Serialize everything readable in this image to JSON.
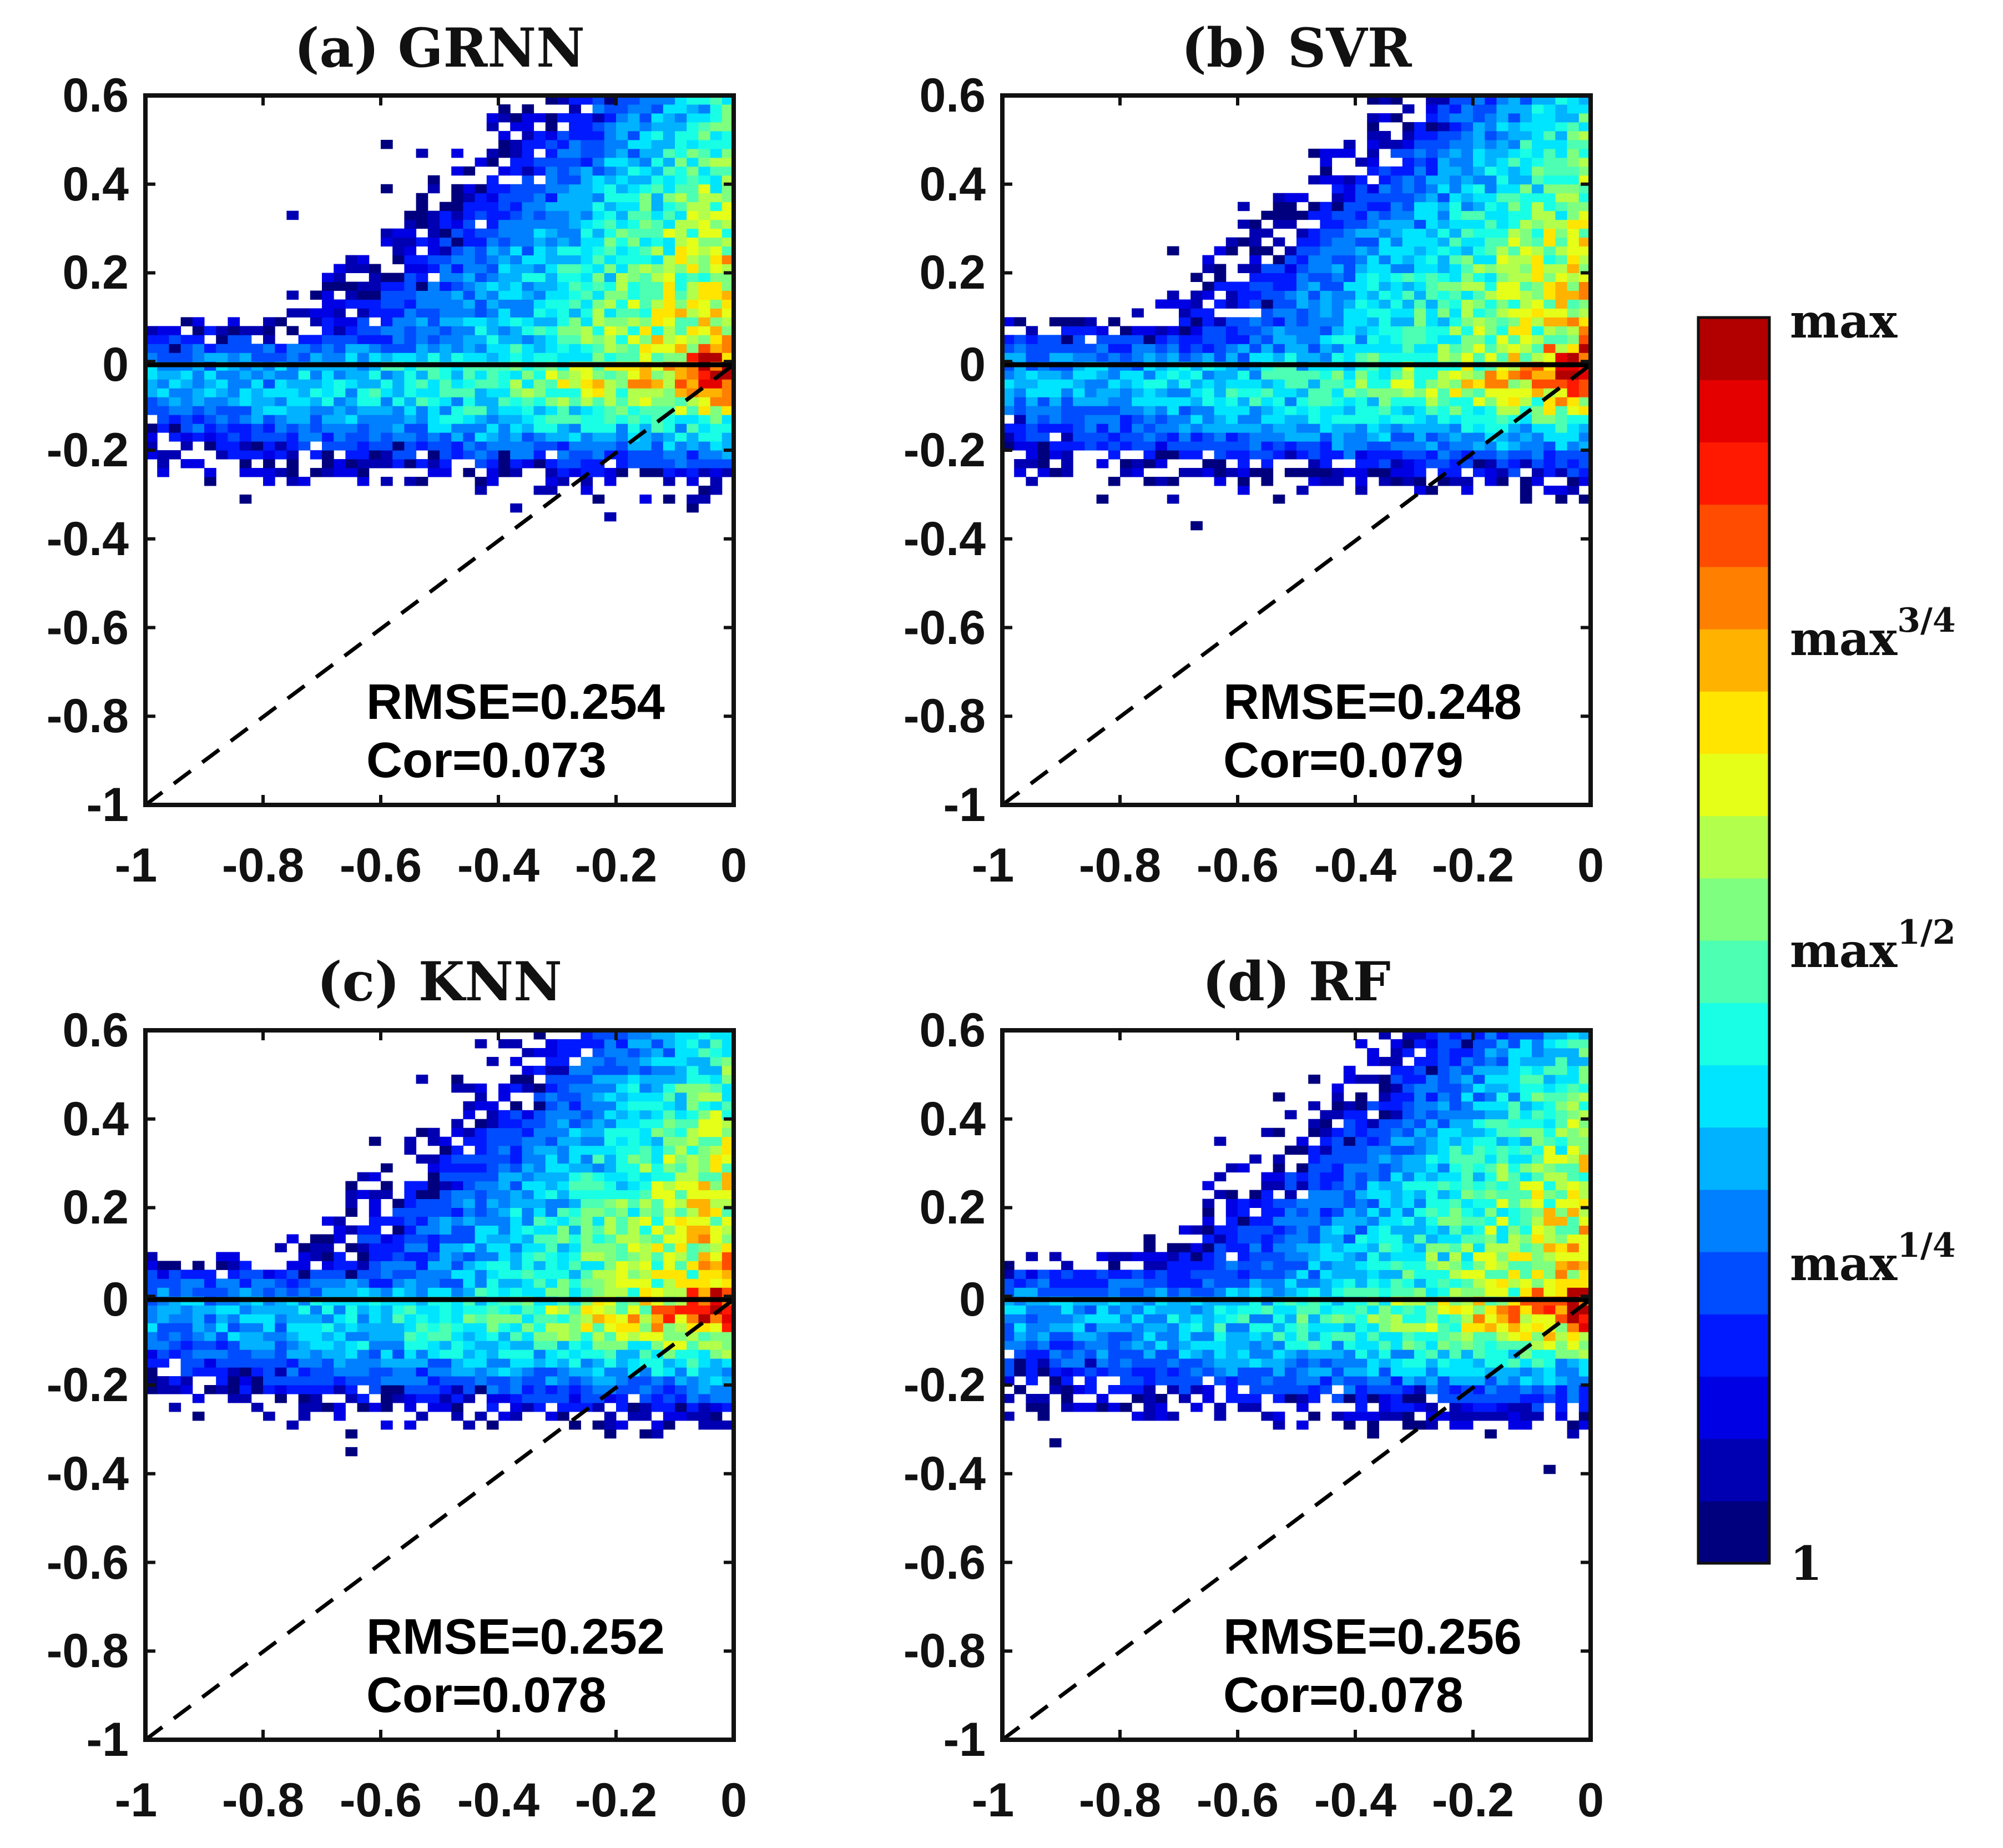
{
  "chart_data": [
    {
      "type": "heatmap",
      "panel": "a",
      "title": "(a) GRNN",
      "xlim": [
        -1,
        0
      ],
      "ylim": [
        -1,
        0.6
      ],
      "xticks": [
        -1,
        -0.8,
        -0.6,
        -0.4,
        -0.2,
        0
      ],
      "xtick_labels": [
        "-1",
        "-0.8",
        "-0.6",
        "-0.4",
        "-0.2",
        "0"
      ],
      "yticks": [
        -1,
        -0.8,
        -0.6,
        -0.4,
        -0.2,
        0,
        0.2,
        0.4,
        0.6
      ],
      "ytick_labels": [
        "-1",
        "-0.8",
        "-0.6",
        "-0.4",
        "-0.2",
        "0",
        "0.2",
        "0.4",
        "0.6"
      ],
      "reference_lines": [
        "y = 0 (solid)",
        "y = x (dashed)"
      ],
      "rmse_text": "RMSE=0.254",
      "cor_text": "Cor=0.073",
      "rmse": 0.254,
      "cor": 0.073,
      "density_seed": 11
    },
    {
      "type": "heatmap",
      "panel": "b",
      "title": "(b) SVR",
      "xlim": [
        -1,
        0
      ],
      "ylim": [
        -1,
        0.6
      ],
      "xticks": [
        -1,
        -0.8,
        -0.6,
        -0.4,
        -0.2,
        0
      ],
      "xtick_labels": [
        "-1",
        "-0.8",
        "-0.6",
        "-0.4",
        "-0.2",
        "0"
      ],
      "yticks": [
        -1,
        -0.8,
        -0.6,
        -0.4,
        -0.2,
        0,
        0.2,
        0.4,
        0.6
      ],
      "ytick_labels": [
        "-1",
        "-0.8",
        "-0.6",
        "-0.4",
        "-0.2",
        "0",
        "0.2",
        "0.4",
        "0.6"
      ],
      "reference_lines": [
        "y = 0 (solid)",
        "y = x (dashed)"
      ],
      "rmse_text": "RMSE=0.248",
      "cor_text": "Cor=0.079",
      "rmse": 0.248,
      "cor": 0.079,
      "density_seed": 23
    },
    {
      "type": "heatmap",
      "panel": "c",
      "title": "(c) KNN",
      "xlim": [
        -1,
        0
      ],
      "ylim": [
        -1,
        0.6
      ],
      "xticks": [
        -1,
        -0.8,
        -0.6,
        -0.4,
        -0.2,
        0
      ],
      "xtick_labels": [
        "-1",
        "-0.8",
        "-0.6",
        "-0.4",
        "-0.2",
        "0"
      ],
      "yticks": [
        -1,
        -0.8,
        -0.6,
        -0.4,
        -0.2,
        0,
        0.2,
        0.4,
        0.6
      ],
      "ytick_labels": [
        "-1",
        "-0.8",
        "-0.6",
        "-0.4",
        "-0.2",
        "0",
        "0.2",
        "0.4",
        "0.6"
      ],
      "reference_lines": [
        "y = 0 (solid)",
        "y = x (dashed)"
      ],
      "rmse_text": "RMSE=0.252",
      "cor_text": "Cor=0.078",
      "rmse": 0.252,
      "cor": 0.078,
      "density_seed": 37
    },
    {
      "type": "heatmap",
      "panel": "d",
      "title": "(d) RF",
      "xlim": [
        -1,
        0
      ],
      "ylim": [
        -1,
        0.6
      ],
      "xticks": [
        -1,
        -0.8,
        -0.6,
        -0.4,
        -0.2,
        0
      ],
      "xtick_labels": [
        "-1",
        "-0.8",
        "-0.6",
        "-0.4",
        "-0.2",
        "0"
      ],
      "yticks": [
        -1,
        -0.8,
        -0.6,
        -0.4,
        -0.2,
        0,
        0.2,
        0.4,
        0.6
      ],
      "ytick_labels": [
        "-1",
        "-0.8",
        "-0.6",
        "-0.4",
        "-0.2",
        "0",
        "0.2",
        "0.4",
        "0.6"
      ],
      "reference_lines": [
        "y = 0 (solid)",
        "y = x (dashed)"
      ],
      "rmse_text": "RMSE=0.256",
      "cor_text": "Cor=0.078",
      "rmse": 0.256,
      "cor": 0.078,
      "density_seed": 53
    }
  ],
  "colorbar": {
    "labels": [
      {
        "base": "max",
        "exp": "",
        "level": 1.0
      },
      {
        "base": "max",
        "exp": "3/4",
        "level": 0.75
      },
      {
        "base": "max",
        "exp": "1/2",
        "level": 0.5
      },
      {
        "base": "max",
        "exp": "1/4",
        "level": 0.25
      },
      {
        "base": "1",
        "exp": "",
        "level": 0.0
      }
    ],
    "colors": [
      "#00007f",
      "#0000b2",
      "#0000e5",
      "#0019ff",
      "#004cff",
      "#007fff",
      "#00b2ff",
      "#00e5ff",
      "#19ffe5",
      "#4cffb2",
      "#7fff7f",
      "#b2ff4c",
      "#e5ff19",
      "#ffe500",
      "#ffb200",
      "#ff7f00",
      "#ff4c00",
      "#ff1900",
      "#e50000",
      "#b20000"
    ]
  }
}
